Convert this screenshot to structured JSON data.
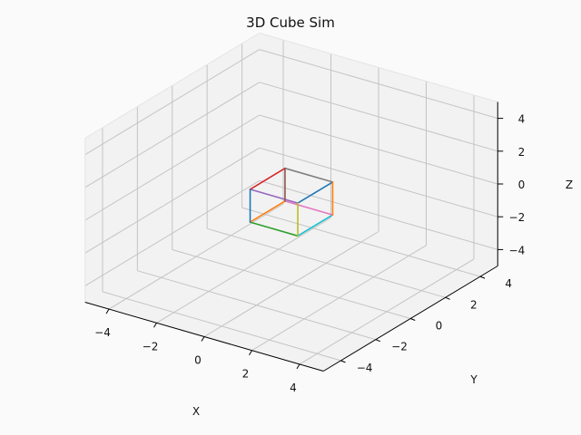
{
  "chart_data": {
    "type": "line3d",
    "title": "3D Cube Sim",
    "xlabel": "X",
    "ylabel": "Y",
    "zlabel": "Z",
    "xlim": [
      -5,
      5
    ],
    "ylim": [
      -5,
      5
    ],
    "zlim": [
      -5,
      5
    ],
    "xticks": [
      -4,
      -2,
      0,
      2,
      4
    ],
    "yticks": [
      -4,
      -2,
      0,
      2,
      4
    ],
    "zticks": [
      -4,
      -2,
      0,
      2,
      4
    ],
    "xtick_labels": [
      "−4",
      "−2",
      "0",
      "2",
      "4"
    ],
    "ytick_labels": [
      "−4",
      "−2",
      "0",
      "2",
      "4"
    ],
    "ztick_labels": [
      "−4",
      "−2",
      "0",
      "2",
      "4"
    ],
    "grid": true,
    "legend": "none",
    "series": [
      {
        "start": [
          -1,
          -1,
          -1
        ],
        "end": [
          1,
          -1,
          -1
        ],
        "color": "#2ca02c"
      },
      {
        "start": [
          1,
          -1,
          -1
        ],
        "end": [
          1,
          1,
          -1
        ],
        "color": "#17becf"
      },
      {
        "start": [
          1,
          1,
          -1
        ],
        "end": [
          -1,
          1,
          -1
        ],
        "color": "#e377c2"
      },
      {
        "start": [
          -1,
          1,
          -1
        ],
        "end": [
          -1,
          -1,
          -1
        ],
        "color": "#ff7f0e"
      },
      {
        "start": [
          -1,
          -1,
          1
        ],
        "end": [
          1,
          -1,
          1
        ],
        "color": "#9467bd"
      },
      {
        "start": [
          1,
          -1,
          1
        ],
        "end": [
          1,
          1,
          1
        ],
        "color": "#1f77b4"
      },
      {
        "start": [
          1,
          1,
          1
        ],
        "end": [
          -1,
          1,
          1
        ],
        "color": "#7f7f7f"
      },
      {
        "start": [
          -1,
          1,
          1
        ],
        "end": [
          -1,
          -1,
          1
        ],
        "color": "#d62728"
      },
      {
        "start": [
          -1,
          -1,
          -1
        ],
        "end": [
          -1,
          -1,
          1
        ],
        "color": "#1f77b4"
      },
      {
        "start": [
          1,
          -1,
          -1
        ],
        "end": [
          1,
          -1,
          1
        ],
        "color": "#bcbd22"
      },
      {
        "start": [
          1,
          1,
          -1
        ],
        "end": [
          1,
          1,
          1
        ],
        "color": "#ff7f0e"
      },
      {
        "start": [
          -1,
          1,
          -1
        ],
        "end": [
          -1,
          1,
          1
        ],
        "color": "#8c564b"
      }
    ]
  }
}
